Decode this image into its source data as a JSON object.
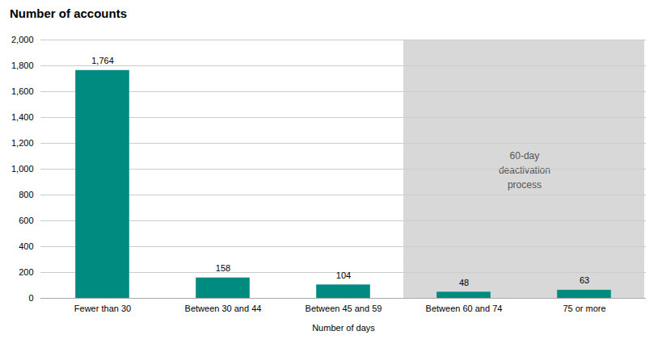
{
  "chart_data": {
    "type": "bar",
    "title": "Number of accounts",
    "xlabel": "Number of days",
    "categories": [
      "Fewer than 30",
      "Between 30 and 44",
      "Between 45 and 59",
      "Between 60 and 74",
      "75 or more"
    ],
    "values": [
      1764,
      158,
      104,
      48,
      63
    ],
    "value_labels": [
      "1,764",
      "158",
      "104",
      "48",
      "63"
    ],
    "data_labels": true,
    "color": "#008B80",
    "ylim": [
      0,
      2000
    ],
    "yticks": [
      0,
      200,
      400,
      600,
      800,
      {
        "value": 1000,
        "label": "1,000"
      },
      {
        "value": 1200,
        "label": "1,200"
      },
      {
        "value": 1400,
        "label": "1,400"
      },
      {
        "value": 1600,
        "label": "1,600"
      },
      {
        "value": 1800,
        "label": "1,800"
      },
      {
        "value": 2000,
        "label": "2,000"
      }
    ],
    "grid": true,
    "annotations": [
      {
        "text": "60-day\ndeactivation\nprocess",
        "from": "Between 60 and 74",
        "to": "75 or more",
        "color": "#D8D8D8"
      }
    ]
  }
}
